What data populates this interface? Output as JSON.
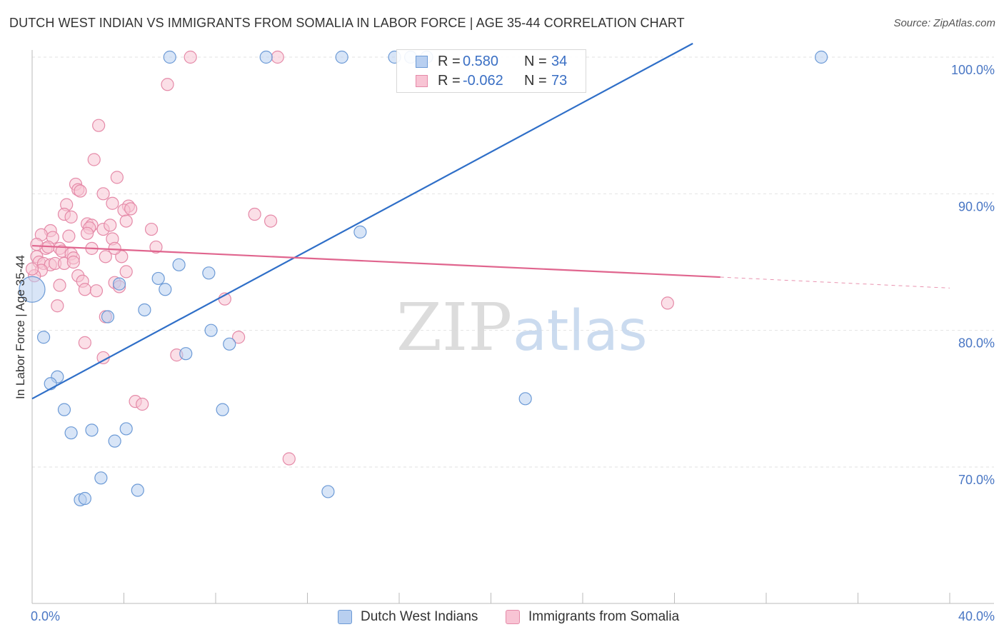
{
  "title": "DUTCH WEST INDIAN VS IMMIGRANTS FROM SOMALIA IN LABOR FORCE | AGE 35-44 CORRELATION CHART",
  "source": "Source: ZipAtlas.com",
  "watermark": {
    "zip": "ZIP",
    "atlas": "atlas"
  },
  "colors": {
    "blue_fill": "#b8cff0",
    "blue_stroke": "#6c9ad6",
    "blue_line": "#2f6fc8",
    "pink_fill": "#f8c4d4",
    "pink_stroke": "#e58aa8",
    "pink_line": "#e0658e",
    "grid": "#e2e2e2",
    "tick_text": "#4a77c4"
  },
  "legend_top": [
    {
      "r_label": "R =",
      "r_value": "0.580",
      "n_label": "N =",
      "n_value": "34"
    },
    {
      "r_label": "R =",
      "r_value": "-0.062",
      "n_label": "N =",
      "n_value": "73"
    }
  ],
  "chart_data": {
    "type": "scatter",
    "title": "DUTCH WEST INDIAN VS IMMIGRANTS FROM SOMALIA IN LABOR FORCE | AGE 35-44 CORRELATION CHART",
    "xlabel": "",
    "ylabel": "In Labor Force | Age 35-44",
    "xlim": [
      0,
      40
    ],
    "ylim": [
      60,
      101
    ],
    "x_tick_labels": [
      {
        "value": 0,
        "label": "0.0%"
      },
      {
        "value": 40,
        "label": "40.0%"
      }
    ],
    "y_tick_labels": [
      {
        "value": 100,
        "label": "100.0%"
      },
      {
        "value": 90,
        "label": "90.0%"
      },
      {
        "value": 80,
        "label": "80.0%"
      },
      {
        "value": 70,
        "label": "70.0%"
      }
    ],
    "series": [
      {
        "name": "Dutch West Indians",
        "r": 0.58,
        "n": 34,
        "trend": {
          "x0": 0,
          "y0": 75.0,
          "x1": 28.8,
          "y1": 101,
          "dashed_to": null
        },
        "points": [
          [
            6.0,
            100.0
          ],
          [
            10.2,
            100.0
          ],
          [
            13.5,
            100.0
          ],
          [
            15.8,
            100.0
          ],
          [
            16.5,
            100.0
          ],
          [
            17.2,
            100.0
          ],
          [
            34.4,
            100.0
          ],
          [
            14.3,
            87.2
          ],
          [
            0.0,
            83.0
          ],
          [
            6.4,
            84.8
          ],
          [
            7.7,
            84.2
          ],
          [
            5.5,
            83.8
          ],
          [
            3.8,
            83.4
          ],
          [
            5.8,
            83.0
          ],
          [
            3.3,
            81.0
          ],
          [
            4.9,
            81.5
          ],
          [
            0.5,
            79.5
          ],
          [
            7.8,
            80.0
          ],
          [
            8.6,
            79.0
          ],
          [
            6.7,
            78.3
          ],
          [
            1.1,
            76.6
          ],
          [
            0.8,
            76.1
          ],
          [
            21.5,
            75.0
          ],
          [
            1.4,
            74.2
          ],
          [
            8.3,
            74.2
          ],
          [
            1.7,
            72.5
          ],
          [
            2.6,
            72.7
          ],
          [
            4.1,
            72.8
          ],
          [
            3.6,
            71.9
          ],
          [
            3.0,
            69.2
          ],
          [
            4.6,
            68.3
          ],
          [
            12.9,
            68.2
          ],
          [
            2.1,
            67.6
          ],
          [
            2.3,
            67.7
          ]
        ]
      },
      {
        "name": "Immigrants from Somalia",
        "r": -0.062,
        "n": 73,
        "trend": {
          "x0": 0,
          "y0": 86.2,
          "x1": 30.0,
          "y1": 83.9,
          "dashed_to": [
            40,
            83.1
          ]
        },
        "points": [
          [
            6.9,
            100.0
          ],
          [
            10.7,
            100.0
          ],
          [
            5.9,
            98.0
          ],
          [
            2.9,
            95.0
          ],
          [
            2.7,
            92.5
          ],
          [
            3.7,
            91.2
          ],
          [
            1.9,
            90.7
          ],
          [
            2.0,
            90.3
          ],
          [
            2.1,
            90.2
          ],
          [
            3.1,
            90.0
          ],
          [
            3.5,
            89.3
          ],
          [
            4.2,
            89.1
          ],
          [
            4.0,
            88.8
          ],
          [
            1.5,
            89.2
          ],
          [
            1.4,
            88.5
          ],
          [
            1.7,
            88.3
          ],
          [
            9.7,
            88.5
          ],
          [
            10.4,
            88.0
          ],
          [
            4.1,
            88.0
          ],
          [
            2.4,
            87.8
          ],
          [
            2.6,
            87.7
          ],
          [
            2.5,
            87.5
          ],
          [
            3.1,
            87.4
          ],
          [
            3.4,
            87.7
          ],
          [
            5.2,
            87.4
          ],
          [
            0.8,
            87.3
          ],
          [
            0.4,
            87.0
          ],
          [
            0.9,
            86.8
          ],
          [
            1.6,
            86.9
          ],
          [
            2.4,
            87.1
          ],
          [
            0.6,
            86.0
          ],
          [
            0.7,
            86.1
          ],
          [
            1.2,
            86.0
          ],
          [
            1.3,
            85.8
          ],
          [
            3.5,
            86.7
          ],
          [
            5.4,
            86.1
          ],
          [
            0.2,
            85.4
          ],
          [
            0.3,
            85.0
          ],
          [
            0.5,
            84.9
          ],
          [
            0.8,
            84.8
          ],
          [
            1.0,
            84.9
          ],
          [
            1.4,
            84.9
          ],
          [
            1.7,
            85.6
          ],
          [
            1.8,
            85.3
          ],
          [
            2.6,
            86.0
          ],
          [
            3.2,
            85.4
          ],
          [
            3.9,
            85.4
          ],
          [
            3.6,
            86.0
          ],
          [
            0.4,
            84.4
          ],
          [
            0.1,
            84.0
          ],
          [
            4.1,
            84.3
          ],
          [
            2.0,
            84.0
          ],
          [
            2.2,
            83.6
          ],
          [
            3.6,
            83.5
          ],
          [
            3.8,
            83.2
          ],
          [
            1.2,
            83.3
          ],
          [
            2.3,
            83.0
          ],
          [
            2.8,
            82.9
          ],
          [
            8.4,
            82.3
          ],
          [
            1.1,
            81.8
          ],
          [
            27.7,
            82.0
          ],
          [
            3.2,
            81.0
          ],
          [
            9.0,
            79.5
          ],
          [
            2.3,
            79.1
          ],
          [
            6.3,
            78.2
          ],
          [
            3.1,
            78.0
          ],
          [
            4.5,
            74.8
          ],
          [
            4.8,
            74.6
          ],
          [
            11.2,
            70.6
          ],
          [
            0.0,
            84.5
          ],
          [
            0.2,
            86.3
          ],
          [
            1.8,
            85.0
          ],
          [
            4.3,
            88.9
          ]
        ]
      }
    ]
  },
  "legend_bottom": [
    {
      "label": "Dutch West Indians"
    },
    {
      "label": "Immigrants from Somalia"
    }
  ]
}
